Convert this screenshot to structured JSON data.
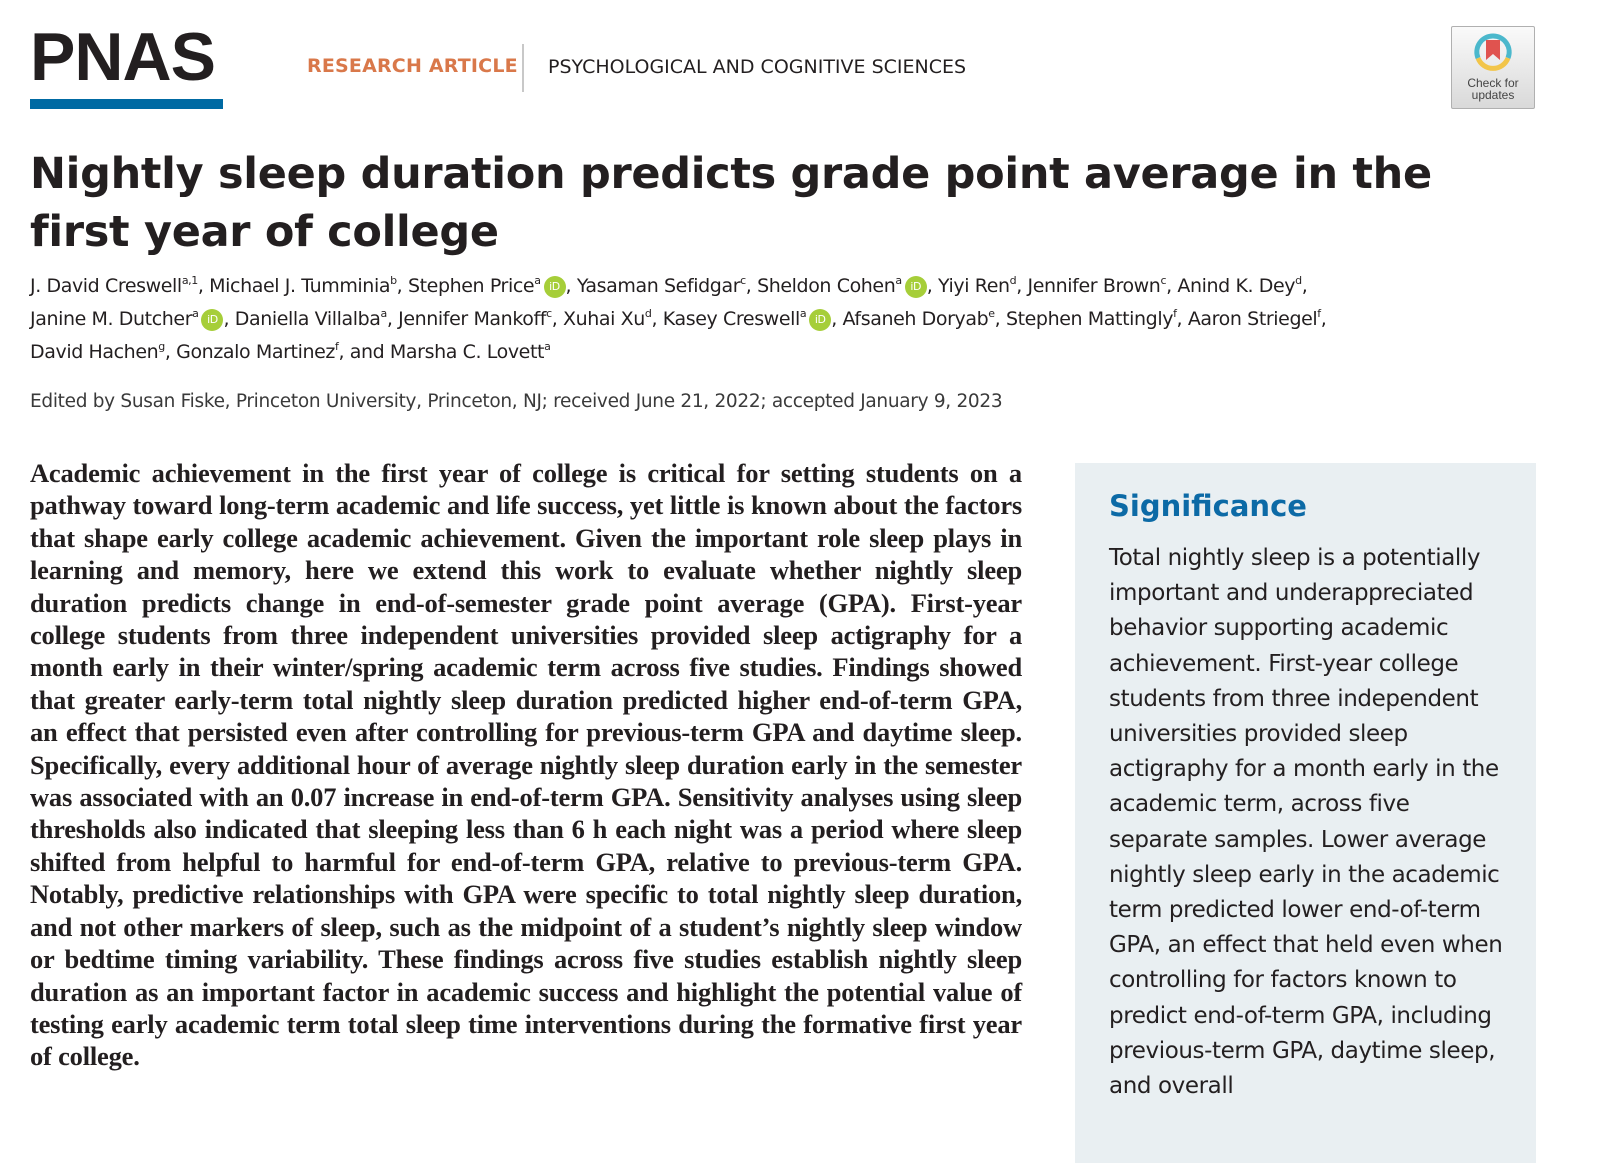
{
  "header": {
    "journal_logo": "PNAS",
    "article_type": "RESEARCH ARTICLE",
    "section": "PSYCHOLOGICAL AND COGNITIVE SCIENCES",
    "update_badge": {
      "line1": "Check for",
      "line2": "updates"
    }
  },
  "colors": {
    "brand_blue": "#006aa3",
    "article_type_orange": "#d9784a",
    "significance_title_blue": "#0c6aa6",
    "significance_bg": "#e9eff2",
    "orcid_green": "#a6ce39"
  },
  "article": {
    "title": "Nightly sleep duration predicts grade point average in the first year of college",
    "authors": [
      {
        "name": "J. David Creswell",
        "aff": "a,1",
        "orcid": false,
        "sep": ", "
      },
      {
        "name": "Michael J. Tumminia",
        "aff": "b",
        "orcid": false,
        "sep": ", "
      },
      {
        "name": "Stephen Price",
        "aff": "a",
        "orcid": true,
        "sep": ", "
      },
      {
        "name": "Yasaman Sefidgar",
        "aff": "c",
        "orcid": false,
        "sep": ", "
      },
      {
        "name": "Sheldon Cohen",
        "aff": "a",
        "orcid": true,
        "sep": ", "
      },
      {
        "name": "Yiyi Ren",
        "aff": "d",
        "orcid": false,
        "sep": ", "
      },
      {
        "name": "Jennifer Brown",
        "aff": "c",
        "orcid": false,
        "sep": ", "
      },
      {
        "name": "Anind K. Dey",
        "aff": "d",
        "orcid": false,
        "sep": ", "
      },
      {
        "name": "Janine M. Dutcher",
        "aff": "a",
        "orcid": true,
        "sep": ", "
      },
      {
        "name": "Daniella Villalba",
        "aff": "a",
        "orcid": false,
        "sep": ", "
      },
      {
        "name": "Jennifer Mankoff",
        "aff": "c",
        "orcid": false,
        "sep": ", "
      },
      {
        "name": "Xuhai Xu",
        "aff": "d",
        "orcid": false,
        "sep": ", "
      },
      {
        "name": "Kasey Creswell",
        "aff": "a",
        "orcid": true,
        "sep": ", "
      },
      {
        "name": "Afsaneh Doryab",
        "aff": "e",
        "orcid": false,
        "sep": ", "
      },
      {
        "name": "Stephen Mattingly",
        "aff": "f",
        "orcid": false,
        "sep": ", "
      },
      {
        "name": "Aaron Striegel",
        "aff": "f",
        "orcid": false,
        "sep": ", "
      },
      {
        "name": "David Hachen",
        "aff": "g",
        "orcid": false,
        "sep": ", "
      },
      {
        "name": "Gonzalo Martinez",
        "aff": "f",
        "orcid": false,
        "sep": ", and "
      },
      {
        "name": "Marsha C. Lovett",
        "aff": "a",
        "orcid": false,
        "sep": ""
      }
    ],
    "orcid_label": "iD",
    "edited_line": "Edited by Susan Fiske, Princeton University, Princeton, NJ; received June 21, 2022; accepted January 9, 2023",
    "abstract": "Academic achievement in the first year of college is critical for setting students on a pathway toward long-term academic and life success, yet little is known about the factors that shape early college academic achievement. Given the important role sleep plays in learning and memory, here we extend this work to evaluate whether nightly sleep duration predicts change in end-of-semester grade point average (GPA). First-year college students from three independent universities provided sleep actigraphy for a month early in their winter/spring academic term across five studies. Findings showed that greater early-term total nightly sleep duration predicted higher end-of-term GPA, an effect that persisted even after controlling for previous-term GPA and daytime sleep. Specifically, every additional hour of average nightly sleep duration early in the semester was associated with an 0.07 increase in end-of-term GPA. Sensitivity analyses using sleep thresholds also indicated that sleeping less than 6 h each night was a period where sleep shifted from helpful to harmful for end-of-term GPA, relative to previous-term GPA. Notably, predictive relationships with GPA were specific to total nightly sleep duration, and not other markers of sleep, such as the midpoint of a student’s nightly sleep window or bedtime timing variability. These findings across five studies establish nightly sleep duration as an important factor in academic success and highlight the potential value of testing early academic term total sleep time interventions during the formative first year of college.",
    "significance": {
      "title": "Significance",
      "text": "Total nightly sleep is a potentially important and underappreciated behavior supporting academic achievement. First-year college students from three independent universities provided sleep actigraphy for a month early in the academic term, across five separate samples. Lower average nightly sleep early in the academic term predicted lower end-of-term GPA, an effect that held even when controlling for factors known to predict end-of-term GPA, including previous-term GPA, daytime sleep, and overall"
    }
  }
}
